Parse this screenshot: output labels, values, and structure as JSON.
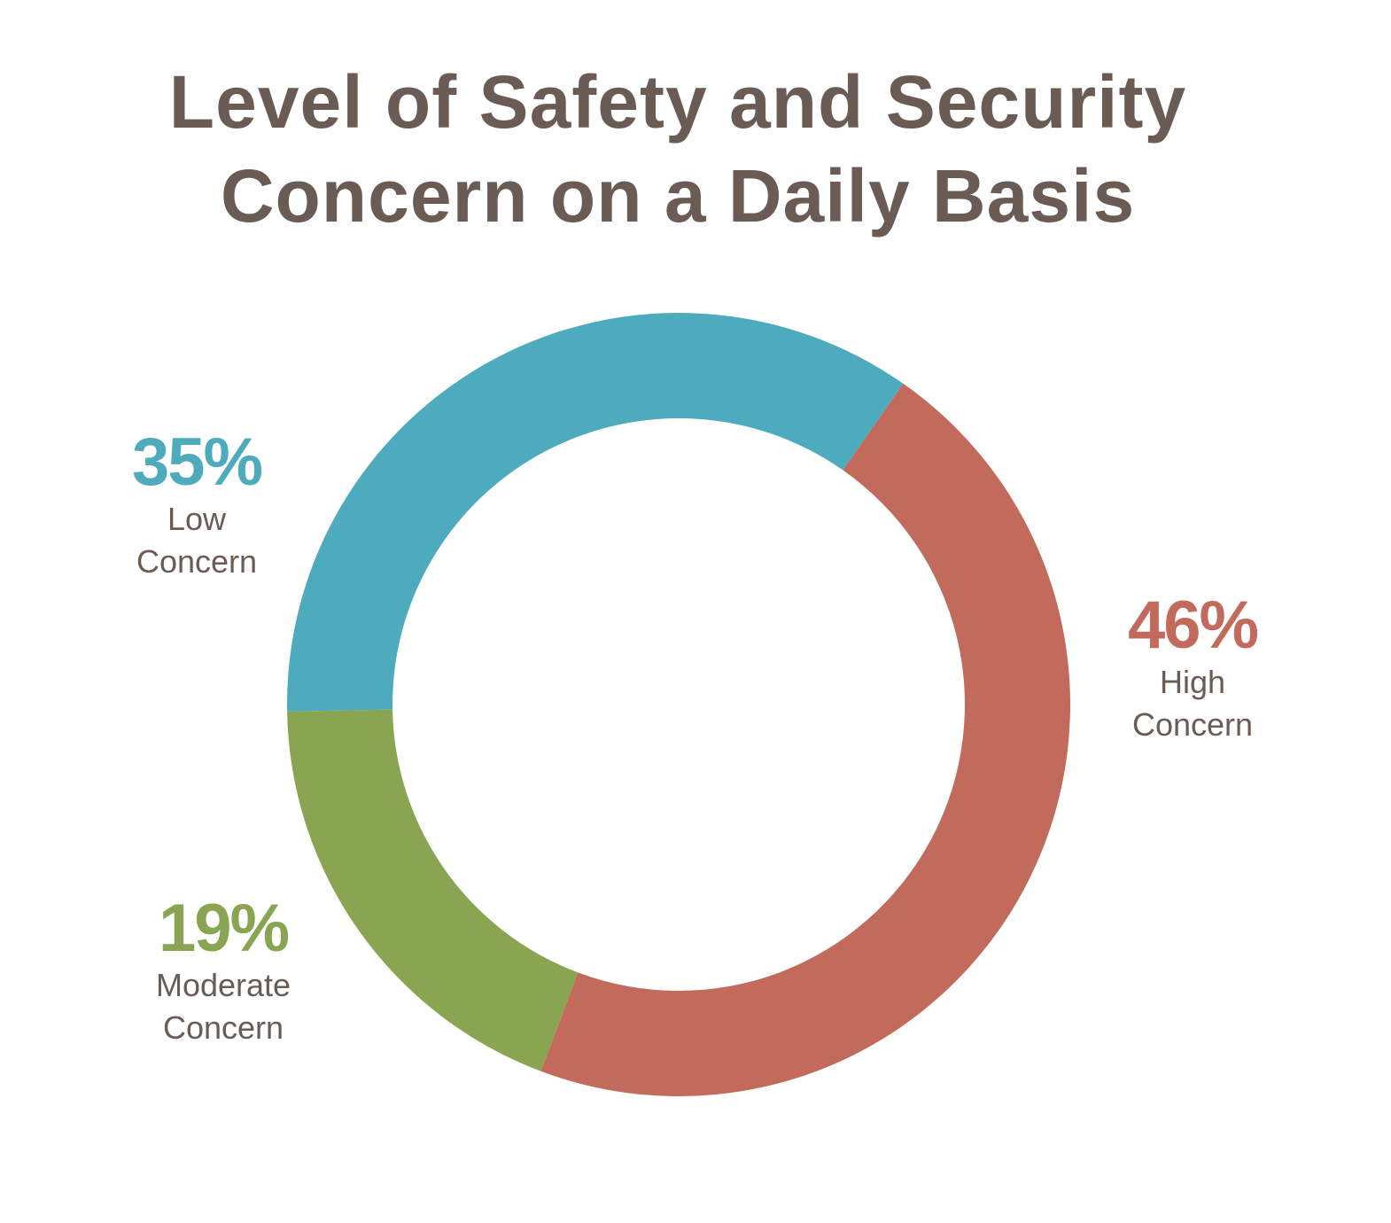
{
  "chart_data": {
    "type": "pie",
    "subtype": "donut",
    "title_lines": [
      "Level of Safety and Security",
      "Concern on a Daily Basis"
    ],
    "slices": [
      {
        "label_lines": [
          "Low",
          "Concern"
        ],
        "value": 35,
        "value_label": "35%",
        "color": "#4eabbd"
      },
      {
        "label_lines": [
          "High",
          "Concern"
        ],
        "value": 46,
        "value_label": "46%",
        "color": "#c26b5c"
      },
      {
        "label_lines": [
          "Moderate",
          "Concern"
        ],
        "value": 19,
        "value_label": "19%",
        "color": "#89a551"
      }
    ]
  }
}
